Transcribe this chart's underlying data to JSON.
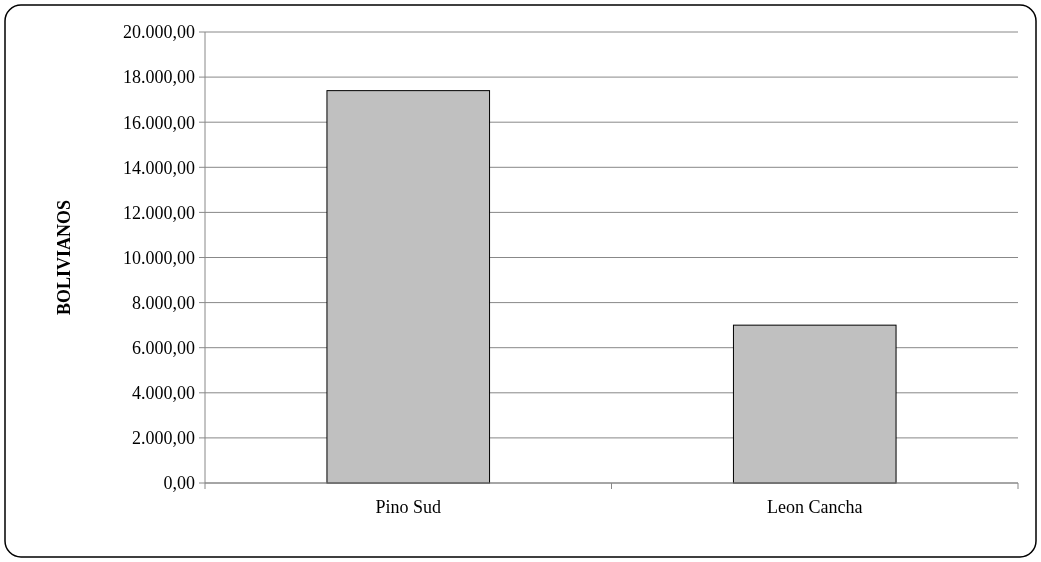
{
  "chart_data": {
    "type": "bar",
    "ylabel": "BOLIVIANOS",
    "categories": [
      "Pino Sud",
      "Leon Cancha"
    ],
    "values": [
      17400,
      7000
    ],
    "color": "#c0c0c0",
    "ylim": [
      0,
      20000
    ],
    "yticks": [
      {
        "value": 0,
        "label": "0,00"
      },
      {
        "value": 2000,
        "label": "2.000,00"
      },
      {
        "value": 4000,
        "label": "4.000,00"
      },
      {
        "value": 6000,
        "label": "6.000,00"
      },
      {
        "value": 8000,
        "label": "8.000,00"
      },
      {
        "value": 10000,
        "label": "10.000,00"
      },
      {
        "value": 12000,
        "label": "12.000,00"
      },
      {
        "value": 14000,
        "label": "14.000,00"
      },
      {
        "value": 16000,
        "label": "16.000,00"
      },
      {
        "value": 18000,
        "label": "18.000,00"
      },
      {
        "value": 20000,
        "label": "20.000,00"
      }
    ],
    "grid": "y"
  }
}
